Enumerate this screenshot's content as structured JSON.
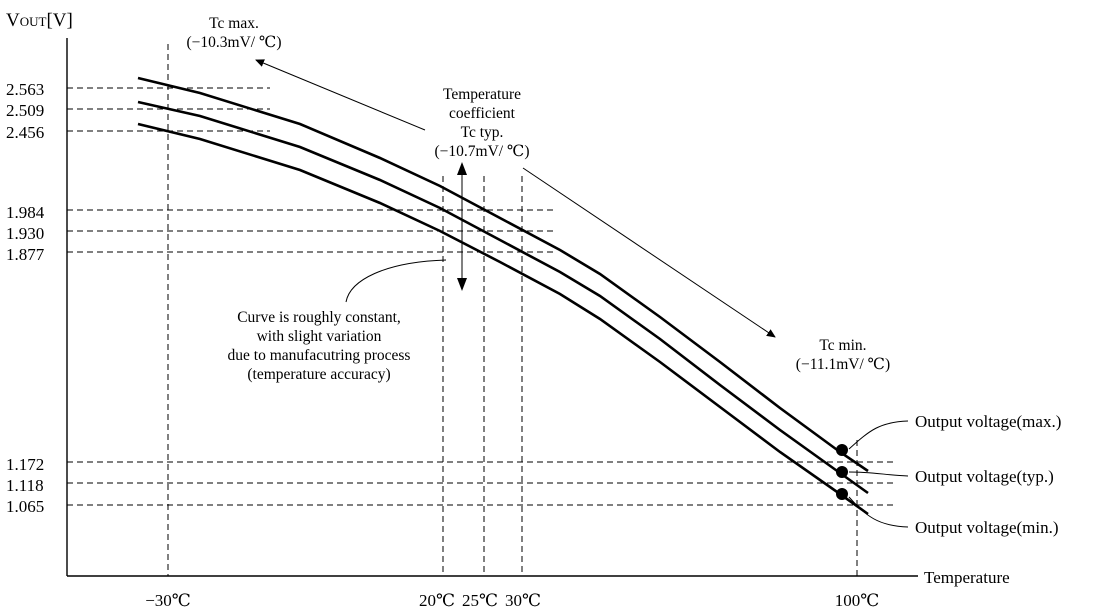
{
  "chart_data": {
    "type": "line",
    "ylabel": "VOUT[V]",
    "ylabel_parts": {
      "main": "V",
      "sub": "OUT",
      "unit": "[V]"
    },
    "xlabel": "Temperature",
    "x_ticks": [
      "−30℃",
      "20℃",
      "25℃",
      "30℃",
      "100℃"
    ],
    "y_ticks": [
      "2.563",
      "2.509",
      "2.456",
      "1.984",
      "1.930",
      "1.877",
      "1.172",
      "1.118",
      "1.065"
    ],
    "series": [
      {
        "x": [
          -35,
          -30,
          25,
          97
        ],
        "values": [
          2.6,
          2.563,
          1.984,
          1.172
        ]
      },
      {
        "x": [
          -35,
          -30,
          25,
          97
        ],
        "values": [
          2.545,
          2.509,
          1.93,
          1.118
        ]
      },
      {
        "x": [
          -35,
          -30,
          25,
          97
        ],
        "values": [
          2.49,
          2.456,
          1.877,
          1.065
        ]
      }
    ],
    "annotations": {
      "tc_max": [
        "Tc max.",
        "(−10.3mV/ ℃)"
      ],
      "tc_typ": [
        "Temperature",
        "coefficient",
        "Tc typ.",
        "(−10.7mV/ ℃)"
      ],
      "tc_min": [
        "Tc min.",
        "(−11.1mV/ ℃)"
      ],
      "curve_note": [
        "Curve is roughly constant,",
        "with slight variation",
        "due to manufacutring process",
        "(temperature accuracy)"
      ],
      "out_max": "Output voltage(max.)",
      "out_typ": "Output voltage(typ.)",
      "out_min": "Output voltage(min.)"
    }
  }
}
